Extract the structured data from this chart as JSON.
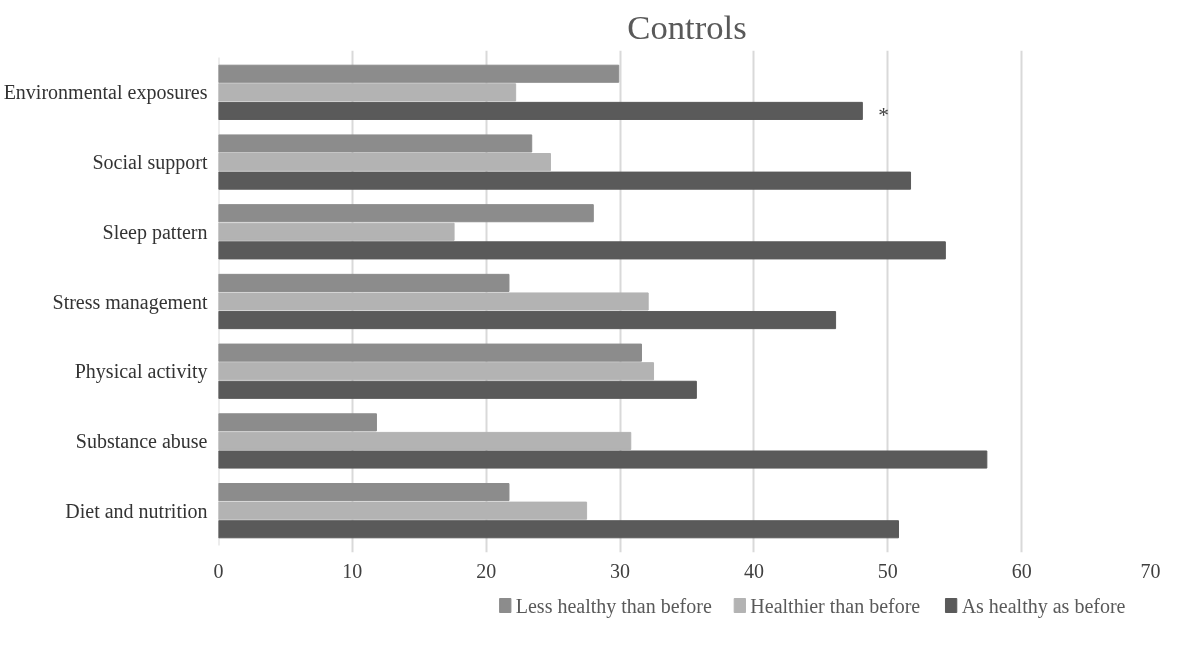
{
  "chart_data": {
    "type": "bar",
    "orientation": "horizontal",
    "title": "Controls",
    "categories": [
      "Environmental exposures",
      "Social support",
      "Sleep pattern",
      "Stress management",
      "Physical activity",
      "Substance abuse",
      "Diet and nutrition"
    ],
    "series": [
      {
        "name": "Less healthy than before",
        "color": "#8c8c8c",
        "values": [
          29.9,
          23.4,
          28.0,
          21.7,
          31.6,
          11.8,
          21.7
        ]
      },
      {
        "name": "Healthier than before",
        "color": "#b3b3b3",
        "values": [
          22.2,
          24.8,
          17.6,
          32.1,
          32.5,
          30.8,
          27.5
        ]
      },
      {
        "name": "As healthy as before",
        "color": "#5a5a5a",
        "values": [
          48.1,
          51.7,
          54.3,
          46.1,
          35.7,
          57.4,
          50.8
        ]
      }
    ],
    "xlim": [
      0,
      70
    ],
    "xticks": [
      0,
      10,
      20,
      30,
      40,
      50,
      60,
      70
    ],
    "grid": "x",
    "legend": "bottom",
    "annotations": [
      "*"
    ]
  }
}
